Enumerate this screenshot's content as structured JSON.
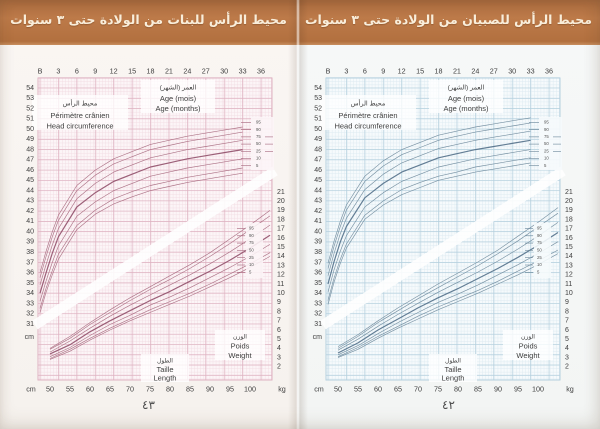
{
  "document": {
    "pages": [
      {
        "id": "girls",
        "title": "محيط الرأس للبنات من الولادة حتى ٣ سنوات",
        "page_number": "٤٣",
        "header_bg": "#b5713f",
        "header_text_color": "#f9eedb"
      },
      {
        "id": "boys",
        "title": "محيط الرأس للصبيان من الولادة حتى ٣ سنوات",
        "page_number": "٤٢",
        "header_bg": "#b5713f",
        "header_text_color": "#f9eedb"
      }
    ]
  },
  "chart_data": [
    {
      "type": "line",
      "subject": "girls",
      "labels": {
        "head_circumference": [
          "محيط الرأس",
          "Périmètre crânien",
          "Head circumference"
        ],
        "age": [
          "العمر (الشهر)",
          "Age (mois)",
          "Age (months)"
        ],
        "weight": [
          "الوزن",
          "Poids",
          "Weight"
        ],
        "length": [
          "الطول",
          "Taille",
          "Length"
        ]
      },
      "axes": {
        "top": {
          "meaning": "age in months",
          "ticks": [
            "B",
            "3",
            "6",
            "9",
            "12",
            "15",
            "18",
            "21",
            "24",
            "27",
            "30",
            "33",
            "36"
          ],
          "range_months": [
            0,
            36
          ]
        },
        "left": {
          "meaning": "head circumference (cm)",
          "unit": "cm",
          "ticks": [
            54,
            53,
            52,
            51,
            50,
            49,
            48,
            47,
            46,
            45,
            44,
            43,
            42,
            41,
            40,
            39,
            38,
            37,
            36,
            35,
            34,
            33,
            32,
            31
          ]
        },
        "right": {
          "meaning": "weight (kg)",
          "unit": "kg",
          "ticks": [
            21,
            20,
            19,
            18,
            17,
            16,
            15,
            14,
            13,
            12,
            11,
            10,
            9,
            8,
            7,
            6,
            5,
            4,
            3,
            2
          ]
        },
        "bottom": {
          "meaning": "length (cm)",
          "unit_left": "cm",
          "unit_right": "kg",
          "ticks": [
            "50",
            "55",
            "60",
            "65",
            "70",
            "75",
            "80",
            "85",
            "90",
            "95",
            "100"
          ]
        }
      },
      "percentile_labels": [
        "95",
        "90",
        "75",
        "50",
        "25",
        "10",
        "5"
      ],
      "head_circumference_for_age": {
        "x_months": [
          0,
          1,
          2,
          3,
          6,
          9,
          12,
          15,
          18,
          21,
          24,
          27,
          30,
          33
        ],
        "series": [
          {
            "name": "95",
            "values": [
              36.0,
              38.1,
              40.0,
              41.6,
              44.5,
              46.0,
              47.1,
              47.8,
              48.5,
              48.9,
              49.3,
              49.6,
              49.9,
              50.2
            ]
          },
          {
            "name": "90",
            "values": [
              35.5,
              37.6,
              39.5,
              41.1,
              44.0,
              45.5,
              46.6,
              47.3,
              48.0,
              48.4,
              48.8,
              49.1,
              49.4,
              49.7
            ]
          },
          {
            "name": "75",
            "values": [
              34.8,
              36.8,
              38.7,
              40.3,
              43.2,
              44.7,
              45.8,
              46.5,
              47.2,
              47.6,
              48.0,
              48.3,
              48.6,
              48.9
            ]
          },
          {
            "name": "50",
            "values": [
              34.0,
              36.0,
              37.9,
              39.5,
              42.4,
              43.8,
              44.9,
              45.6,
              46.3,
              46.7,
              47.1,
              47.4,
              47.7,
              48.0
            ]
          },
          {
            "name": "25",
            "values": [
              33.2,
              35.2,
              37.0,
              38.6,
              41.5,
              42.9,
              44.0,
              44.7,
              45.4,
              45.8,
              46.2,
              46.5,
              46.8,
              47.1
            ]
          },
          {
            "name": "10",
            "values": [
              32.5,
              34.5,
              36.2,
              37.8,
              40.6,
              42.1,
              43.2,
              43.9,
              44.5,
              44.9,
              45.3,
              45.6,
              45.9,
              46.2
            ]
          },
          {
            "name": "5",
            "values": [
              32.1,
              34.1,
              35.8,
              37.3,
              40.2,
              41.7,
              42.7,
              43.4,
              44.0,
              44.4,
              44.8,
              45.1,
              45.4,
              45.7
            ]
          }
        ]
      },
      "weight_for_length": {
        "x_length_cm": [
          50,
          55,
          60,
          65,
          70,
          75,
          80,
          85,
          90,
          95,
          100,
          105
        ],
        "series": [
          {
            "name": "95",
            "values": [
              4.0,
              5.3,
              6.8,
              8.2,
              9.5,
              10.7,
              11.9,
              13.1,
              14.4,
              15.9,
              17.4,
              19.0
            ]
          },
          {
            "name": "90",
            "values": [
              3.9,
              5.1,
              6.6,
              7.9,
              9.2,
              10.4,
              11.5,
              12.7,
              14.0,
              15.4,
              16.9,
              18.4
            ]
          },
          {
            "name": "75",
            "values": [
              3.6,
              4.8,
              6.2,
              7.5,
              8.7,
              9.8,
              10.9,
              12.0,
              13.2,
              14.5,
              15.9,
              17.4
            ]
          },
          {
            "name": "50",
            "values": [
              3.4,
              4.4,
              5.8,
              7.0,
              8.1,
              9.2,
              10.2,
              11.3,
              12.4,
              13.6,
              14.9,
              16.3
            ]
          },
          {
            "name": "25",
            "values": [
              3.1,
              4.1,
              5.4,
              6.6,
              7.6,
              8.7,
              9.6,
              10.6,
              11.7,
              12.8,
              14.0,
              15.3
            ]
          },
          {
            "name": "10",
            "values": [
              2.9,
              3.9,
              5.1,
              6.2,
              7.2,
              8.2,
              9.1,
              10.0,
              11.0,
              12.1,
              13.2,
              14.4
            ]
          },
          {
            "name": "5",
            "values": [
              2.8,
              3.7,
              4.9,
              6.0,
              7.0,
              7.9,
              8.8,
              9.7,
              10.7,
              11.7,
              12.8,
              14.0
            ]
          }
        ]
      },
      "theme": {
        "plot_bg": "#fcf5f7",
        "grid_minor": "#f2dce3",
        "grid_major": "#deb2c1",
        "curve": "#a5677c",
        "curve_median": "#91506a",
        "text": "#3e3e3e"
      }
    },
    {
      "type": "line",
      "subject": "boys",
      "labels": {
        "head_circumference": [
          "محيط الرأس",
          "Périmètre crânien",
          "Head circumference"
        ],
        "age": [
          "العمر (الشهر)",
          "Age (mois)",
          "Age (months)"
        ],
        "weight": [
          "الوزن",
          "Poids",
          "Weight"
        ],
        "length": [
          "الطول",
          "Taille",
          "Length"
        ]
      },
      "axes": {
        "top": {
          "meaning": "age in months",
          "ticks": [
            "B",
            "3",
            "6",
            "9",
            "12",
            "15",
            "18",
            "21",
            "24",
            "27",
            "30",
            "33",
            "36"
          ],
          "range_months": [
            0,
            36
          ]
        },
        "left": {
          "meaning": "head circumference (cm)",
          "unit": "cm",
          "ticks": [
            54,
            53,
            52,
            51,
            50,
            49,
            48,
            47,
            46,
            45,
            44,
            43,
            42,
            41,
            40,
            39,
            38,
            37,
            36,
            35,
            34,
            33,
            32,
            31
          ]
        },
        "right": {
          "meaning": "weight (kg)",
          "unit": "kg",
          "ticks": [
            21,
            20,
            19,
            18,
            17,
            16,
            15,
            14,
            13,
            12,
            11,
            10,
            9,
            8,
            7,
            6,
            5,
            4,
            3,
            2
          ]
        },
        "bottom": {
          "meaning": "length (cm)",
          "unit_left": "cm",
          "unit_right": "kg",
          "ticks": [
            "50",
            "55",
            "60",
            "65",
            "70",
            "75",
            "80",
            "85",
            "90",
            "95",
            "100"
          ]
        }
      },
      "percentile_labels": [
        "95",
        "90",
        "75",
        "50",
        "25",
        "10",
        "5"
      ],
      "head_circumference_for_age": {
        "x_months": [
          0,
          1,
          2,
          3,
          6,
          9,
          12,
          15,
          18,
          21,
          24,
          27,
          30,
          33
        ],
        "series": [
          {
            "name": "95",
            "values": [
              36.9,
              39.1,
              41.0,
              42.6,
              45.4,
              46.9,
              48.0,
              48.7,
              49.4,
              49.8,
              50.2,
              50.5,
              50.8,
              51.1
            ]
          },
          {
            "name": "90",
            "values": [
              36.4,
              38.6,
              40.5,
              42.1,
              44.9,
              46.4,
              47.5,
              48.2,
              48.9,
              49.3,
              49.7,
              50.0,
              50.3,
              50.6
            ]
          },
          {
            "name": "75",
            "values": [
              35.7,
              37.9,
              39.8,
              41.3,
              44.1,
              45.6,
              46.7,
              47.4,
              48.1,
              48.5,
              48.9,
              49.2,
              49.5,
              49.8
            ]
          },
          {
            "name": "50",
            "values": [
              34.9,
              37.1,
              39.0,
              40.5,
              43.3,
              44.7,
              45.8,
              46.5,
              47.2,
              47.6,
              48.0,
              48.3,
              48.6,
              48.9
            ]
          },
          {
            "name": "25",
            "values": [
              34.1,
              36.3,
              38.1,
              39.6,
              42.4,
              43.8,
              44.9,
              45.6,
              46.3,
              46.7,
              47.1,
              47.4,
              47.7,
              48.0
            ]
          },
          {
            "name": "10",
            "values": [
              33.3,
              35.5,
              37.3,
              38.8,
              41.6,
              43.0,
              44.1,
              44.8,
              45.4,
              45.8,
              46.3,
              46.6,
              46.9,
              47.2
            ]
          },
          {
            "name": "5",
            "values": [
              32.9,
              35.1,
              36.9,
              38.4,
              41.2,
              42.6,
              43.6,
              44.3,
              45.0,
              45.4,
              45.8,
              46.1,
              46.4,
              46.7
            ]
          }
        ]
      },
      "weight_for_length": {
        "x_length_cm": [
          50,
          55,
          60,
          65,
          70,
          75,
          80,
          85,
          90,
          95,
          100,
          105
        ],
        "series": [
          {
            "name": "95",
            "values": [
              4.2,
              5.5,
              7.0,
              8.4,
              9.7,
              11.0,
              12.2,
              13.4,
              14.7,
              16.2,
              17.7,
              19.3
            ]
          },
          {
            "name": "90",
            "values": [
              4.0,
              5.3,
              6.8,
              8.1,
              9.4,
              10.6,
              11.8,
              13.0,
              14.3,
              15.7,
              17.2,
              18.7
            ]
          },
          {
            "name": "75",
            "values": [
              3.8,
              5.0,
              6.4,
              7.7,
              8.9,
              10.1,
              11.2,
              12.3,
              13.5,
              14.8,
              16.2,
              17.7
            ]
          },
          {
            "name": "50",
            "values": [
              3.5,
              4.6,
              6.0,
              7.2,
              8.4,
              9.5,
              10.5,
              11.6,
              12.7,
              13.9,
              15.2,
              16.6
            ]
          },
          {
            "name": "25",
            "values": [
              3.3,
              4.3,
              5.6,
              6.8,
              7.9,
              9.0,
              9.9,
              10.9,
              12.0,
              13.1,
              14.3,
              15.6
            ]
          },
          {
            "name": "10",
            "values": [
              3.1,
              4.1,
              5.3,
              6.4,
              7.5,
              8.5,
              9.4,
              10.3,
              11.3,
              12.4,
              13.5,
              14.7
            ]
          },
          {
            "name": "5",
            "values": [
              3.0,
              3.9,
              5.1,
              6.2,
              7.2,
              8.2,
              9.1,
              10.0,
              11.0,
              12.0,
              13.1,
              14.3
            ]
          }
        ]
      },
      "theme": {
        "plot_bg": "#f6fafc",
        "grid_minor": "#dceaf1",
        "grid_major": "#b5d0de",
        "curve": "#6a8699",
        "curve_median": "#53708a",
        "text": "#3e3e3e"
      }
    }
  ]
}
